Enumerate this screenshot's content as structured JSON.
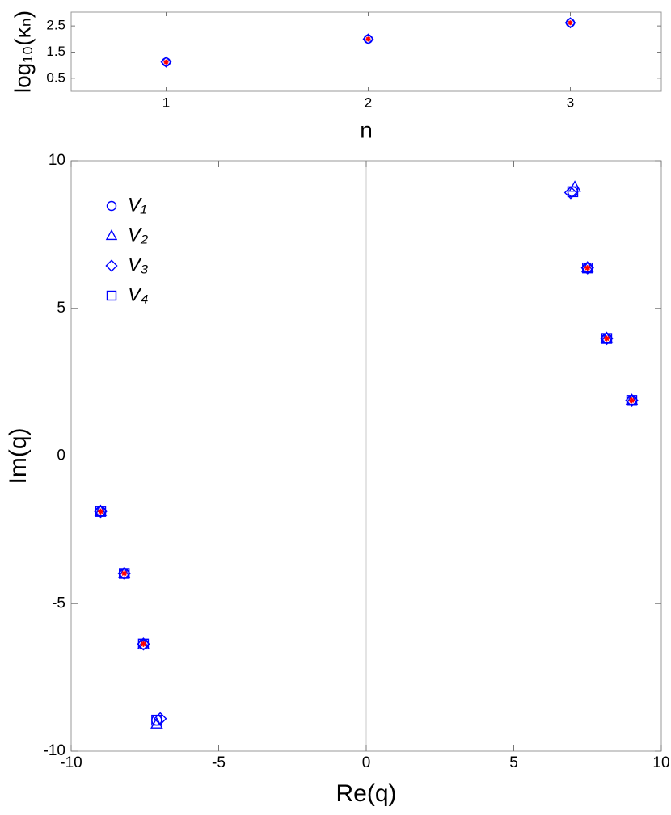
{
  "chart_data": [
    {
      "type": "scatter",
      "xlabel": "n",
      "ylabel": "log₁₀(κₙ)",
      "x": [
        1,
        2,
        3
      ],
      "xlim": [
        0.53,
        3.45
      ],
      "ylim": [
        0,
        3.03
      ],
      "xticks": [
        1,
        2,
        3
      ],
      "yticks": [
        0.5,
        1.5,
        2.5
      ],
      "series": [
        {
          "color": "#0000ff",
          "marker": "circle",
          "values": [
            1.12,
            2.0,
            2.62
          ]
        },
        {
          "color": "#0000ff",
          "marker": "diamond",
          "values": [
            1.12,
            2.0,
            2.62
          ]
        },
        {
          "color": "#ff0000",
          "marker": "star",
          "values": [
            1.12,
            2.0,
            2.62
          ]
        }
      ]
    },
    {
      "type": "scatter",
      "xlabel": "Re(q)",
      "ylabel": "Im(q)",
      "xlim": [
        -10,
        10
      ],
      "ylim": [
        -10,
        10
      ],
      "xticks": [
        -10,
        -5,
        0,
        5,
        10
      ],
      "yticks": [
        -10,
        -5,
        0,
        5,
        10
      ],
      "axes_lines": true,
      "series": [
        {
          "name": "V₁",
          "color": "#0000ff",
          "marker": "circle",
          "x": [
            7.0,
            7.5,
            8.15,
            9.0,
            -9.0,
            -8.2,
            -7.55,
            -7.1
          ],
          "values": [
            8.95,
            6.37,
            3.98,
            1.88,
            -1.88,
            -3.98,
            -6.37,
            -8.95
          ]
        },
        {
          "name": "V₂",
          "color": "#0000ff",
          "marker": "triangle",
          "x": [
            7.07,
            7.5,
            8.15,
            9.0,
            -9.0,
            -8.2,
            -7.55,
            -7.1
          ],
          "values": [
            9.1,
            6.37,
            3.98,
            1.88,
            -1.88,
            -3.98,
            -6.4,
            -9.08
          ]
        },
        {
          "name": "V₃",
          "color": "#0000ff",
          "marker": "diamond",
          "x": [
            6.93,
            7.5,
            8.15,
            9.0,
            -9.0,
            -8.2,
            -7.55,
            -6.98
          ],
          "values": [
            8.92,
            6.37,
            3.98,
            1.88,
            -1.88,
            -3.98,
            -6.37,
            -8.9
          ]
        },
        {
          "name": "V₄",
          "color": "#0000ff",
          "marker": "square",
          "x": [
            7.0,
            7.5,
            8.15,
            9.0,
            -9.0,
            -8.2,
            -7.55,
            -7.1
          ],
          "values": [
            8.95,
            6.37,
            3.98,
            1.88,
            -1.88,
            -3.98,
            -6.37,
            -8.95
          ]
        },
        {
          "color": "#ff0000",
          "marker": "star",
          "x": [
            7.5,
            8.15,
            9.0,
            -9.0,
            -8.2,
            -7.55
          ],
          "values": [
            6.37,
            3.98,
            1.88,
            -1.88,
            -3.98,
            -6.37
          ]
        }
      ]
    }
  ]
}
